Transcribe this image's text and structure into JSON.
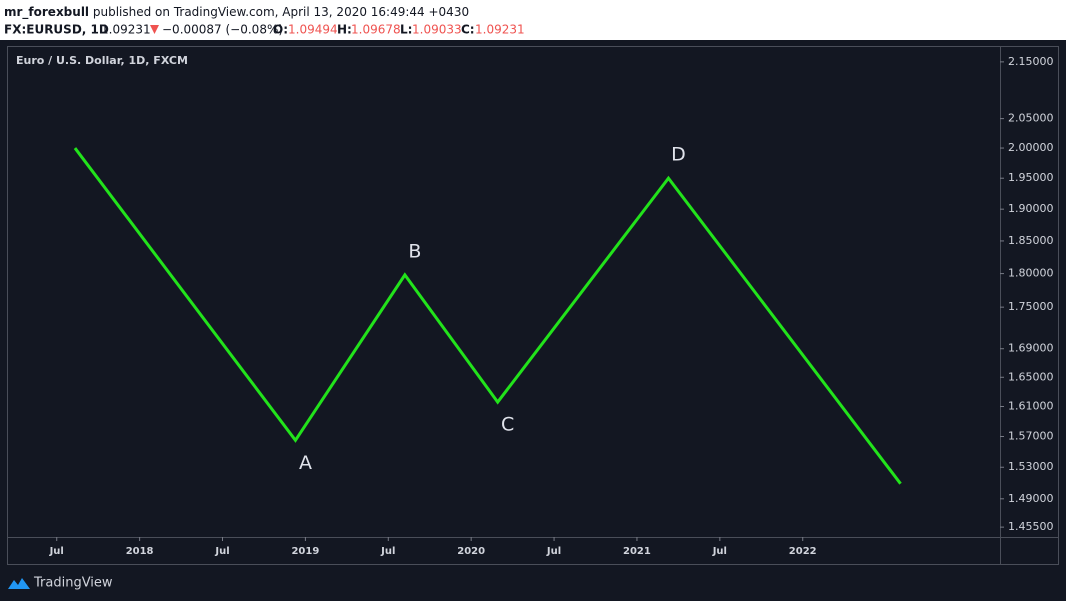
{
  "header": {
    "author": "mr_forexbull",
    "published": "published on TradingView.com, April 13, 2020 16:49:44 +0430",
    "symbol": "FX:EURUSD, 1D",
    "last": "1.09231",
    "change": "−0.00087 (−0.08%)",
    "open_label": "O:",
    "open": "1.09494",
    "high_label": "H:",
    "high": "1.09678",
    "low_label": "L:",
    "low": "1.09033",
    "close_label": "C:",
    "close": "1.09231"
  },
  "chart_data": {
    "type": "line",
    "title": "Euro / U.S. Dollar, 1D, FXCM",
    "color": "#22e31b",
    "log_scale": true,
    "x": [
      2017.61,
      2018.94,
      2019.6,
      2020.16,
      2021.19,
      2022.59
    ],
    "values": [
      2.0,
      1.565,
      1.798,
      1.616,
      1.95,
      1.509
    ],
    "point_labels": [
      null,
      "A",
      "B",
      "C",
      "D",
      null
    ],
    "xlim": [
      2017.2,
      2023.19
    ],
    "xticks": [
      {
        "value": 2017.5,
        "label": "Jul"
      },
      2018,
      {
        "value": 2018.5,
        "label": "Jul"
      },
      2019,
      {
        "value": 2019.5,
        "label": "Jul"
      },
      2020,
      {
        "value": 2020.5,
        "label": "Jul"
      },
      2021,
      {
        "value": 2021.5,
        "label": "Jul"
      },
      2022
    ],
    "ylim": [
      1.443,
      2.177
    ],
    "yticks": [
      {
        "value": 2.15,
        "label": "2.15000"
      },
      {
        "value": 2.05,
        "label": "2.05000"
      },
      {
        "value": 2.0,
        "label": "2.00000"
      },
      {
        "value": 1.95,
        "label": "1.95000"
      },
      {
        "value": 1.9,
        "label": "1.90000"
      },
      {
        "value": 1.85,
        "label": "1.85000"
      },
      {
        "value": 1.8,
        "label": "1.80000"
      },
      {
        "value": 1.75,
        "label": "1.75000"
      },
      {
        "value": 1.69,
        "label": "1.69000"
      },
      {
        "value": 1.65,
        "label": "1.65000"
      },
      {
        "value": 1.61,
        "label": "1.61000"
      },
      {
        "value": 1.57,
        "label": "1.57000"
      },
      {
        "value": 1.53,
        "label": "1.53000"
      },
      {
        "value": 1.49,
        "label": "1.49000"
      },
      {
        "value": 1.455,
        "label": "1.45500"
      }
    ]
  },
  "footer": {
    "brand": "TradingView"
  }
}
